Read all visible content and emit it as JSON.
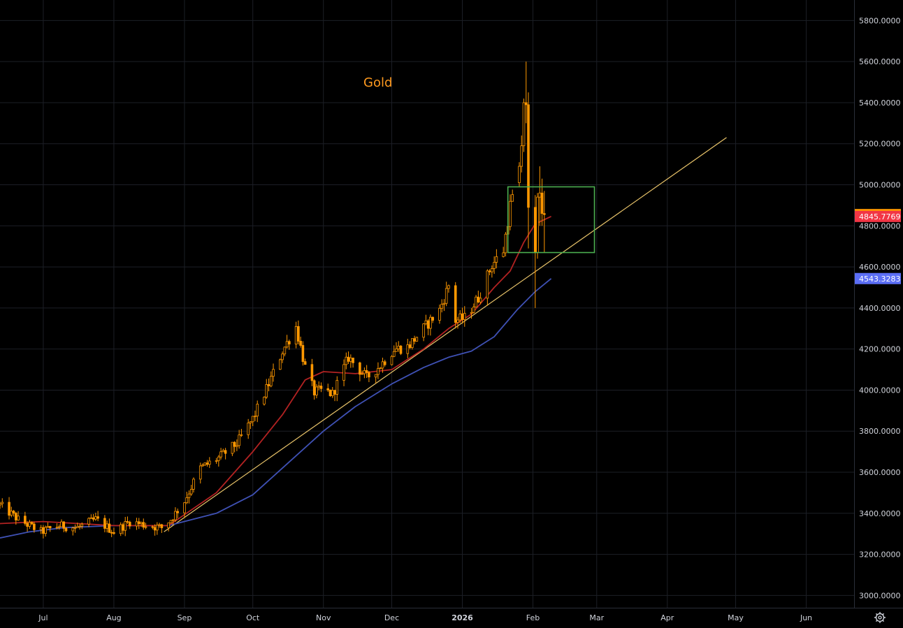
{
  "chart_data": {
    "type": "candlestick",
    "title": "Gold",
    "y_ticks": [
      "5800.0000",
      "5600.0000",
      "5400.0000",
      "5200.0000",
      "5000.0000",
      "4800.0000",
      "4600.0000",
      "4400.0000",
      "4200.0000",
      "4000.0000",
      "3800.0000",
      "3600.0000",
      "3400.0000",
      "3200.0000",
      "3000.0000"
    ],
    "y_tick_values": [
      5800,
      5600,
      5400,
      5200,
      5000,
      4800,
      4600,
      4400,
      4200,
      4000,
      3800,
      3600,
      3400,
      3200,
      3000
    ],
    "ylim": [
      2940,
      5900
    ],
    "x_ticks": [
      {
        "label": "Jul",
        "date": "2025-07-01",
        "bold": false
      },
      {
        "label": "Aug",
        "date": "2025-08-01",
        "bold": false
      },
      {
        "label": "Sep",
        "date": "2025-09-01",
        "bold": false
      },
      {
        "label": "Oct",
        "date": "2025-10-01",
        "bold": false
      },
      {
        "label": "Nov",
        "date": "2025-11-01",
        "bold": false
      },
      {
        "label": "Dec",
        "date": "2025-12-01",
        "bold": false
      },
      {
        "label": "2026",
        "date": "2026-01-01",
        "bold": true
      },
      {
        "label": "Feb",
        "date": "2026-02-01",
        "bold": false
      },
      {
        "label": "Mar",
        "date": "2026-03-01",
        "bold": false
      },
      {
        "label": "Apr",
        "date": "2026-04-01",
        "bold": false
      },
      {
        "label": "May",
        "date": "2026-05-01",
        "bold": false
      },
      {
        "label": "Jun",
        "date": "2026-06-01",
        "bold": false
      }
    ],
    "xlim": [
      "2025-06-12",
      "2026-06-22"
    ],
    "price_anchors": [
      [
        "2025-06-12",
        3440
      ],
      [
        "2025-06-20",
        3370
      ],
      [
        "2025-06-30",
        3310
      ],
      [
        "2025-07-08",
        3340
      ],
      [
        "2025-07-16",
        3330
      ],
      [
        "2025-07-24",
        3370
      ],
      [
        "2025-08-01",
        3310
      ],
      [
        "2025-08-08",
        3360
      ],
      [
        "2025-08-16",
        3340
      ],
      [
        "2025-08-22",
        3330
      ],
      [
        "2025-08-26",
        3370
      ],
      [
        "2025-09-01",
        3460
      ],
      [
        "2025-09-08",
        3620
      ],
      [
        "2025-09-16",
        3670
      ],
      [
        "2025-09-24",
        3740
      ],
      [
        "2025-10-01",
        3860
      ],
      [
        "2025-10-08",
        4030
      ],
      [
        "2025-10-14",
        4190
      ],
      [
        "2025-10-20",
        4310
      ],
      [
        "2025-10-24",
        4110
      ],
      [
        "2025-10-28",
        3990
      ],
      [
        "2025-11-01",
        4000
      ],
      [
        "2025-11-05",
        3980
      ],
      [
        "2025-11-12",
        4160
      ],
      [
        "2025-11-20",
        4060
      ],
      [
        "2025-11-26",
        4120
      ],
      [
        "2025-12-02",
        4200
      ],
      [
        "2025-12-08",
        4210
      ],
      [
        "2025-12-15",
        4300
      ],
      [
        "2025-12-22",
        4390
      ],
      [
        "2025-12-26",
        4510
      ],
      [
        "2025-12-29",
        4340
      ],
      [
        "2026-01-02",
        4350
      ],
      [
        "2026-01-08",
        4450
      ],
      [
        "2026-01-14",
        4610
      ],
      [
        "2026-01-19",
        4680
      ],
      [
        "2026-01-22",
        4900
      ],
      [
        "2026-01-25",
        5010
      ],
      [
        "2026-01-28",
        5150
      ],
      [
        "2026-01-30",
        4890
      ],
      [
        "2026-02-02",
        4660
      ],
      [
        "2026-02-05",
        4960
      ],
      [
        "2026-02-09",
        4855
      ]
    ],
    "explicit_candles": [
      {
        "date": "2026-01-26",
        "open": 5010,
        "high": 5110,
        "low": 4990,
        "close": 5090
      },
      {
        "date": "2026-01-27",
        "open": 5090,
        "high": 5240,
        "low": 5060,
        "close": 5190
      },
      {
        "date": "2026-01-28",
        "open": 5190,
        "high": 5420,
        "low": 5160,
        "close": 5400
      },
      {
        "date": "2026-01-29",
        "open": 5400,
        "high": 5600,
        "low": 5300,
        "close": 5390
      },
      {
        "date": "2026-01-30",
        "open": 5390,
        "high": 5450,
        "low": 4690,
        "close": 4890
      },
      {
        "date": "2026-02-02",
        "open": 4890,
        "high": 4950,
        "low": 4400,
        "close": 4670
      },
      {
        "date": "2026-02-03",
        "open": 4670,
        "high": 4960,
        "low": 4640,
        "close": 4940
      },
      {
        "date": "2026-02-04",
        "open": 4940,
        "high": 5090,
        "low": 4800,
        "close": 4960
      },
      {
        "date": "2026-02-05",
        "open": 4960,
        "high": 5030,
        "low": 4800,
        "close": 4860
      },
      {
        "date": "2026-02-06",
        "open": 4860,
        "high": 4970,
        "low": 4670,
        "close": 4855
      }
    ],
    "ma_red": [
      [
        "2025-06-12",
        3350
      ],
      [
        "2025-07-01",
        3360
      ],
      [
        "2025-08-01",
        3340
      ],
      [
        "2025-08-25",
        3340
      ],
      [
        "2025-09-15",
        3500
      ],
      [
        "2025-10-01",
        3700
      ],
      [
        "2025-10-14",
        3880
      ],
      [
        "2025-10-24",
        4050
      ],
      [
        "2025-11-01",
        4090
      ],
      [
        "2025-11-15",
        4080
      ],
      [
        "2025-12-01",
        4100
      ],
      [
        "2025-12-15",
        4200
      ],
      [
        "2025-12-26",
        4300
      ],
      [
        "2026-01-05",
        4370
      ],
      [
        "2026-01-15",
        4500
      ],
      [
        "2026-01-22",
        4580
      ],
      [
        "2026-01-28",
        4720
      ],
      [
        "2026-02-02",
        4810
      ],
      [
        "2026-02-09",
        4846
      ]
    ],
    "ma_blue": [
      [
        "2025-06-12",
        3280
      ],
      [
        "2025-06-25",
        3310
      ],
      [
        "2025-07-10",
        3330
      ],
      [
        "2025-08-01",
        3340
      ],
      [
        "2025-08-25",
        3340
      ],
      [
        "2025-09-15",
        3400
      ],
      [
        "2025-10-01",
        3490
      ],
      [
        "2025-10-14",
        3620
      ],
      [
        "2025-11-01",
        3800
      ],
      [
        "2025-11-15",
        3920
      ],
      [
        "2025-12-01",
        4030
      ],
      [
        "2025-12-15",
        4110
      ],
      [
        "2025-12-26",
        4160
      ],
      [
        "2026-01-05",
        4190
      ],
      [
        "2026-01-15",
        4260
      ],
      [
        "2026-01-25",
        4390
      ],
      [
        "2026-02-02",
        4480
      ],
      [
        "2026-02-09",
        4543
      ]
    ],
    "trendline": {
      "start": [
        "2025-08-23",
        3310
      ],
      "end": [
        "2026-04-27",
        5230
      ],
      "color": "#e9c46a"
    },
    "box": {
      "x0": "2026-01-21",
      "x1": "2026-02-28",
      "y0": 4670,
      "y1": 4990,
      "color": "#4caf50"
    },
    "price_tags": [
      {
        "label": "4854.9994",
        "value": 4854.9994,
        "bg": "#ff9800",
        "fg": "#000000"
      },
      {
        "label": "4845.7769",
        "value": 4845.7769,
        "bg": "#f23645",
        "fg": "#ffffff"
      },
      {
        "label": "4543.3283",
        "value": 4543.3283,
        "bg": "#5b6ef5",
        "fg": "#ffffff"
      }
    ],
    "colors": {
      "candle": "#ff9800",
      "ma_red": "#b22222",
      "ma_blue": "#3f51b5",
      "grid": "#1c1f26",
      "axis_bg": "#000000",
      "axis_line": "#2a2e39"
    },
    "grid": true,
    "legend": "none"
  },
  "ui": {
    "settings_icon": "gear-icon"
  }
}
